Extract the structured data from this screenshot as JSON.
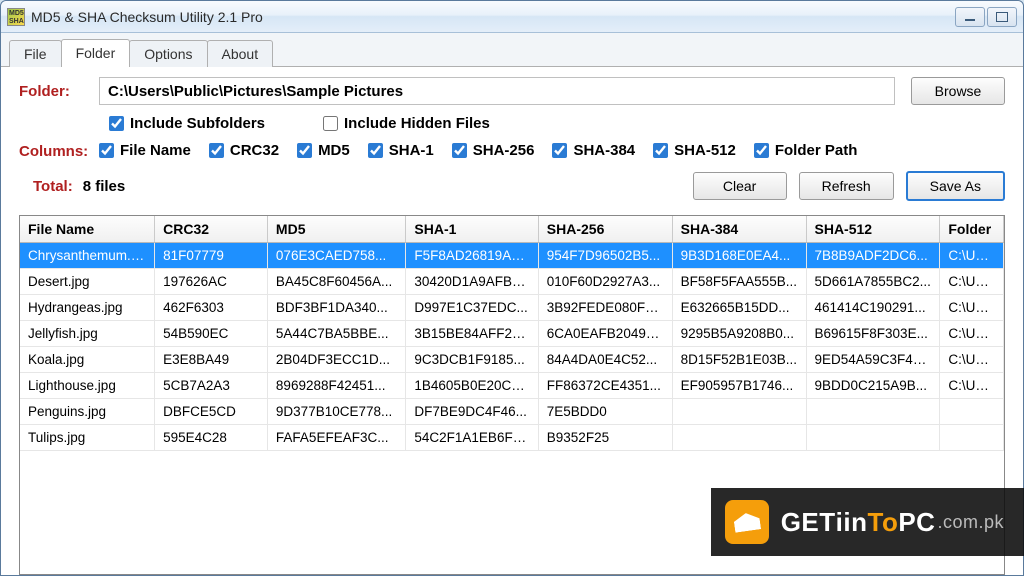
{
  "window": {
    "title": "MD5 & SHA Checksum Utility 2.1 Pro"
  },
  "tabs": [
    "File",
    "Folder",
    "Options",
    "About"
  ],
  "active_tab": 1,
  "folder": {
    "label": "Folder:",
    "path": "C:\\Users\\Public\\Pictures\\Sample Pictures",
    "browse": "Browse",
    "include_subfolders": "Include Subfolders",
    "include_hidden": "Include Hidden Files",
    "sub_checked": true,
    "hidden_checked": false
  },
  "columns_label": "Columns:",
  "column_opts": [
    {
      "label": "File Name",
      "checked": true
    },
    {
      "label": "CRC32",
      "checked": true
    },
    {
      "label": "MD5",
      "checked": true
    },
    {
      "label": "SHA-1",
      "checked": true
    },
    {
      "label": "SHA-256",
      "checked": true
    },
    {
      "label": "SHA-384",
      "checked": true
    },
    {
      "label": "SHA-512",
      "checked": true
    },
    {
      "label": "Folder Path",
      "checked": true
    }
  ],
  "total": {
    "label": "Total:",
    "value": "8 files"
  },
  "buttons": {
    "clear": "Clear",
    "refresh": "Refresh",
    "saveas": "Save As"
  },
  "headers": [
    "File Name",
    "CRC32",
    "MD5",
    "SHA-1",
    "SHA-256",
    "SHA-384",
    "SHA-512",
    "Folder"
  ],
  "rows": [
    {
      "sel": true,
      "fn": "Chrysanthemum.jpg",
      "crc": "81F07779",
      "md5": "076E3CAED758...",
      "sha1": "F5F8AD26819A4...",
      "s256": "954F7D96502B5...",
      "s384": "9B3D168E0EA4...",
      "s512": "7B8B9ADF2DC6...",
      "fp": "C:\\Users"
    },
    {
      "sel": false,
      "fn": "Desert.jpg",
      "crc": "197626AC",
      "md5": "BA45C8F60456A...",
      "sha1": "30420D1A9AFB2...",
      "s256": "010F60D2927A3...",
      "s384": "BF58F5FAA555B...",
      "s512": "5D661A7855BC2...",
      "fp": "C:\\Users"
    },
    {
      "sel": false,
      "fn": "Hydrangeas.jpg",
      "crc": "462F6303",
      "md5": "BDF3BF1DA340...",
      "sha1": "D997E1C37EDC...",
      "s256": "3B92FEDE080F9...",
      "s384": "E632665B15DD...",
      "s512": "461414C190291...",
      "fp": "C:\\Users"
    },
    {
      "sel": false,
      "fn": "Jellyfish.jpg",
      "crc": "54B590EC",
      "md5": "5A44C7BA5BBE...",
      "sha1": "3B15BE84AFF20...",
      "s256": "6CA0EAFB20496...",
      "s384": "9295B5A9208B0...",
      "s512": "B69615F8F303E...",
      "fp": "C:\\Users"
    },
    {
      "sel": false,
      "fn": "Koala.jpg",
      "crc": "E3E8BA49",
      "md5": "2B04DF3ECC1D...",
      "sha1": "9C3DCB1F9185...",
      "s256": "84A4DA0E4C52...",
      "s384": "8D15F52B1E03B...",
      "s512": "9ED54A59C3F46...",
      "fp": "C:\\Users"
    },
    {
      "sel": false,
      "fn": "Lighthouse.jpg",
      "crc": "5CB7A2A3",
      "md5": "8969288F42451...",
      "sha1": "1B4605B0E20CE...",
      "s256": "FF86372CE4351...",
      "s384": "EF905957B1746...",
      "s512": "9BDD0C215A9B...",
      "fp": "C:\\Users"
    },
    {
      "sel": false,
      "fn": "Penguins.jpg",
      "crc": "DBFCE5CD",
      "md5": "9D377B10CE778...",
      "sha1": "DF7BE9DC4F46...",
      "s256": "7E5BDD0",
      "s384": "",
      "s512": "",
      "fp": ""
    },
    {
      "sel": false,
      "fn": "Tulips.jpg",
      "crc": "595E4C28",
      "md5": "FAFA5EFEAF3C...",
      "sha1": "54C2F1A1EB6F1...",
      "s256": "B9352F25",
      "s384": "",
      "s512": "",
      "fp": ""
    }
  ],
  "watermark": {
    "t1": "GET",
    "t2": "iin",
    "t3": "To",
    "t4": "PC",
    "suffix": ".com.pk"
  }
}
